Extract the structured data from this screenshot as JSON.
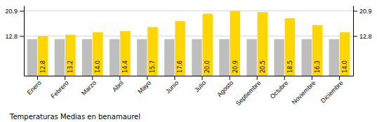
{
  "chart_data": {
    "type": "bar",
    "title": "Temperaturas Medias en benamaurel",
    "categories": [
      "Enero",
      "Febrero",
      "Marzo",
      "Abril",
      "Mayo",
      "Junio",
      "Julio",
      "Agosto",
      "Septiembre",
      "Octubre",
      "Noviembre",
      "Diciembre"
    ],
    "series": [
      {
        "color": "#BEBEBE",
        "values": [
          11.8,
          11.8,
          11.8,
          11.8,
          11.8,
          11.8,
          11.8,
          11.8,
          11.8,
          11.8,
          11.8,
          11.8
        ]
      },
      {
        "color": "#FFD700",
        "values": [
          12.8,
          13.2,
          14.0,
          14.4,
          15.7,
          17.6,
          20.0,
          20.9,
          20.5,
          18.5,
          16.3,
          14.0
        ],
        "value_labels": [
          "12.8",
          "13.2",
          "14.0",
          "14.4",
          "15.7",
          "17.6",
          "20.0",
          "20.9",
          "20.5",
          "18.5",
          "16.3",
          "14.0"
        ],
        "data_labels": true
      }
    ],
    "ylim": [
      0,
      22.6
    ],
    "yticks": [
      20.9,
      12.8
    ],
    "y2lim": [
      0,
      22.6
    ],
    "y2ticks": [
      20.9,
      12.8
    ],
    "grid": true
  }
}
